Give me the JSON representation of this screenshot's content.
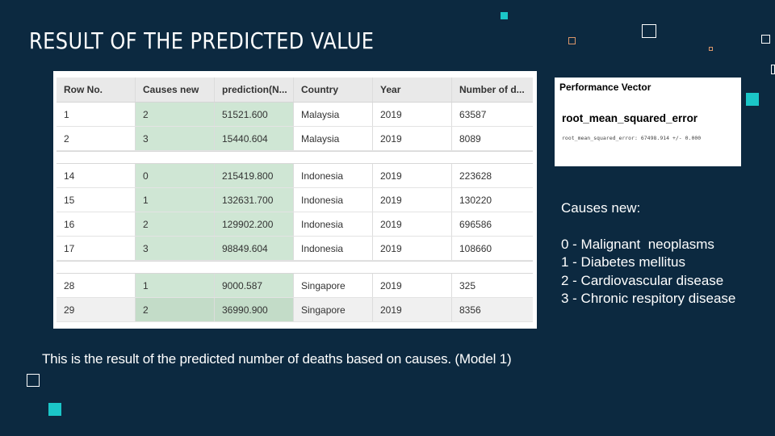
{
  "title": "RESULT OF THE PREDICTED VALUE",
  "colors": {
    "background": "#0c2940",
    "accent": "#1bc6c8",
    "highlight_column": "#cfe6d4"
  },
  "table": {
    "headers": [
      "Row No.",
      "Causes new",
      "prediction(N...",
      "Country",
      "Year",
      "Number of d..."
    ],
    "groups": [
      [
        [
          "1",
          "2",
          "51521.600",
          "Malaysia",
          "2019",
          "63587"
        ],
        [
          "2",
          "3",
          "15440.604",
          "Malaysia",
          "2019",
          "8089"
        ]
      ],
      [
        [
          "14",
          "0",
          "215419.800",
          "Indonesia",
          "2019",
          "223628"
        ],
        [
          "15",
          "1",
          "132631.700",
          "Indonesia",
          "2019",
          "130220"
        ],
        [
          "16",
          "2",
          "129902.200",
          "Indonesia",
          "2019",
          "696586"
        ],
        [
          "17",
          "3",
          "98849.604",
          "Indonesia",
          "2019",
          "108660"
        ]
      ],
      [
        [
          "28",
          "1",
          "9000.587",
          "Singapore",
          "2019",
          "325"
        ],
        [
          "29",
          "2",
          "36990.900",
          "Singapore",
          "2019",
          "8356"
        ]
      ]
    ]
  },
  "performance": {
    "title": "Performance Vector",
    "metric": "root_mean_squared_error",
    "line": "root_mean_squared_error: 67498.914 +/- 0.000"
  },
  "legend": {
    "heading": "Causes new:",
    "items": [
      "0 - Malignant  neoplasms",
      "1 - Diabetes mellitus",
      "2 - Cardiovascular disease",
      "3 - Chronic respitory disease"
    ]
  },
  "caption": "This is the result of the predicted number of deaths based on causes. (Model 1)"
}
